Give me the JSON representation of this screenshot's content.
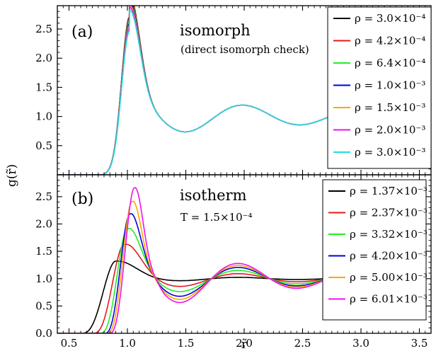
{
  "chart_data": {
    "x_axis": {
      "label": "r̃",
      "ticks": [
        0.5,
        1.0,
        1.5,
        2.0,
        2.5,
        3.0,
        3.5
      ],
      "tick_labels": [
        "0.5",
        "1.0",
        "1.5",
        "2.0",
        "2.5",
        "3.0",
        "3.5"
      ],
      "xlim": [
        0.4,
        3.6
      ]
    },
    "y_axis": {
      "label": "g(r̃)"
    },
    "panels": [
      {
        "type": "line",
        "id": "a",
        "panel_label": "(a)",
        "title": "isomorph",
        "subtitle": "(direct isomorph check)",
        "ylim": [
          0.0,
          2.9
        ],
        "yticks": [
          0.5,
          1.0,
          1.5,
          2.0,
          2.5
        ],
        "ytick_labels": [
          "0.5",
          "1.0",
          "1.5",
          "2.0",
          "2.5"
        ],
        "legend_position": "top-right",
        "series": [
          {
            "name": "ρ = 3.0×10⁻⁴",
            "color": "#000000",
            "peak": 2.71,
            "decay": 1.0,
            "plot_until": 3.7
          },
          {
            "name": "ρ = 4.2×10⁻⁴",
            "color": "#e41a1c",
            "peak": 2.68,
            "decay": 1.0,
            "plot_until": 3.7
          },
          {
            "name": "ρ = 6.4×10⁻⁴",
            "color": "#22ee22",
            "peak": 2.64,
            "decay": 1.0,
            "plot_until": 3.7
          },
          {
            "name": "ρ = 1.0×10⁻³",
            "color": "#0000dd",
            "peak": 2.6,
            "decay": 1.0,
            "plot_until": 3.7
          },
          {
            "name": "ρ = 1.5×10⁻³",
            "color": "#ffa500",
            "peak": 2.56,
            "decay": 1.0,
            "plot_until": 3.7
          },
          {
            "name": "ρ = 2.0×10⁻³",
            "color": "#ee11ee",
            "peak": 2.52,
            "decay": 1.0,
            "plot_until": 3.7
          },
          {
            "name": "ρ = 3.0×10⁻³",
            "color": "#22dddd",
            "peak": 2.47,
            "decay": 1.0,
            "plot_until": 3.7
          }
        ]
      },
      {
        "type": "line",
        "id": "b",
        "panel_label": "(b)",
        "title": "isotherm",
        "subtitle": "T = 1.5×10⁻⁴",
        "ylim": [
          0.0,
          2.9
        ],
        "yticks": [
          0.0,
          0.5,
          1.0,
          1.5,
          2.0,
          2.5
        ],
        "ytick_labels": [
          "0.0",
          "0.5",
          "1.0",
          "1.5",
          "2.0",
          "2.5"
        ],
        "legend_position": "right",
        "series": [
          {
            "name": "ρ = 1.37×10⁻³",
            "color": "#000000",
            "x0": 0.9,
            "peak": 1.32,
            "width": 0.15,
            "onset": 0.6,
            "amp": 0.04,
            "plot_until": 2.9
          },
          {
            "name": "ρ = 2.37×10⁻³",
            "color": "#e41a1c",
            "x0": 0.97,
            "peak": 1.62,
            "width": 0.12,
            "onset": 0.7,
            "amp": 0.15,
            "plot_until": 2.9
          },
          {
            "name": "ρ = 3.32×10⁻³",
            "color": "#22ee22",
            "x0": 1.0,
            "peak": 1.91,
            "width": 0.1,
            "onset": 0.76,
            "amp": 0.25,
            "plot_until": 2.9
          },
          {
            "name": "ρ = 4.20×10⁻³",
            "color": "#0000dd",
            "x0": 1.02,
            "peak": 2.18,
            "width": 0.085,
            "onset": 0.8,
            "amp": 0.34,
            "plot_until": 2.9
          },
          {
            "name": "ρ = 5.00×10⁻³",
            "color": "#ffa500",
            "x0": 1.04,
            "peak": 2.41,
            "width": 0.075,
            "onset": 0.82,
            "amp": 0.4,
            "plot_until": 2.9
          },
          {
            "name": "ρ = 6.01×10⁻³",
            "color": "#ee11ee",
            "x0": 1.06,
            "peak": 2.66,
            "width": 0.07,
            "onset": 0.84,
            "amp": 0.46,
            "plot_until": 2.9
          }
        ]
      }
    ]
  }
}
